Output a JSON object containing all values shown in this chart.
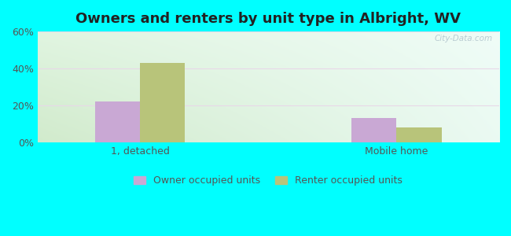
{
  "title": "Owners and renters by unit type in Albright, WV",
  "categories": [
    "1, detached",
    "Mobile home"
  ],
  "owner_values": [
    22.0,
    13.0
  ],
  "renter_values": [
    43.0,
    8.0
  ],
  "owner_color": "#c9a8d4",
  "renter_color": "#b8c47a",
  "ylim": [
    0,
    60
  ],
  "yticks": [
    0,
    20,
    40,
    60
  ],
  "ytick_labels": [
    "0%",
    "20%",
    "40%",
    "60%"
  ],
  "legend_owner": "Owner occupied units",
  "legend_renter": "Renter occupied units",
  "bar_width": 0.35,
  "group_positions": [
    1.0,
    3.0
  ],
  "background_outer": "#00FFFF",
  "watermark": "City-Data.com",
  "title_fontsize": 13,
  "axis_label_fontsize": 9,
  "legend_fontsize": 9,
  "grad_color_topleft": [
    0.88,
    0.96,
    0.88
  ],
  "grad_color_topright": [
    0.94,
    0.99,
    0.97
  ],
  "grad_color_bottomleft": [
    0.82,
    0.92,
    0.8
  ],
  "grad_color_bottomright": [
    0.92,
    0.98,
    0.95
  ]
}
